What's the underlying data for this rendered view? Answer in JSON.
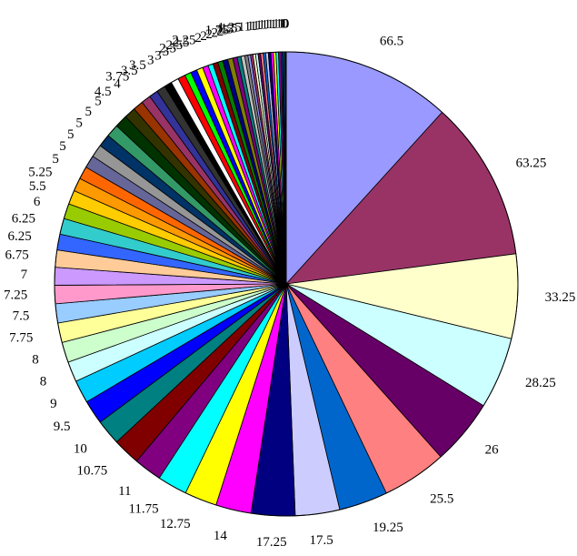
{
  "chart_data": {
    "type": "pie",
    "start": "top",
    "direction": "clockwise",
    "legend": "none",
    "slices": [
      {
        "value": 66.5,
        "label": "66.5",
        "color": "#9999ff"
      },
      {
        "value": 63.25,
        "label": "63.25",
        "color": "#993366"
      },
      {
        "value": 33.25,
        "label": "33.25",
        "color": "#ffffcc"
      },
      {
        "value": 28.25,
        "label": "28.25",
        "color": "#ccffff"
      },
      {
        "value": 26,
        "label": "26",
        "color": "#660066"
      },
      {
        "value": 25.5,
        "label": "25.5",
        "color": "#ff8080"
      },
      {
        "value": 19.25,
        "label": "19.25",
        "color": "#0066cc"
      },
      {
        "value": 17.5,
        "label": "17.5",
        "color": "#ccccff"
      },
      {
        "value": 17.25,
        "label": "17.25",
        "color": "#000080"
      },
      {
        "value": 14,
        "label": "14",
        "color": "#ff00ff"
      },
      {
        "value": 12.75,
        "label": "12.75",
        "color": "#ffff00"
      },
      {
        "value": 11.75,
        "label": "11.75",
        "color": "#00ffff"
      },
      {
        "value": 11,
        "label": "11",
        "color": "#800080"
      },
      {
        "value": 10.75,
        "label": "10.75",
        "color": "#800000"
      },
      {
        "value": 10,
        "label": "10",
        "color": "#008080"
      },
      {
        "value": 9.5,
        "label": "9.5",
        "color": "#0000ff"
      },
      {
        "value": 9,
        "label": "9",
        "color": "#00ccff"
      },
      {
        "value": 8,
        "label": "8",
        "color": "#ccffff"
      },
      {
        "value": 8,
        "label": "8",
        "color": "#ccffcc"
      },
      {
        "value": 7.75,
        "label": "7.75",
        "color": "#ffff99"
      },
      {
        "value": 7.5,
        "label": "7.5",
        "color": "#99ccff"
      },
      {
        "value": 7.25,
        "label": "7.25",
        "color": "#ff99cc"
      },
      {
        "value": 7,
        "label": "7",
        "color": "#cc99ff"
      },
      {
        "value": 6.75,
        "label": "6.75",
        "color": "#ffcc99"
      },
      {
        "value": 6.25,
        "label": "6.25",
        "color": "#3366ff"
      },
      {
        "value": 6.25,
        "label": "6.25",
        "color": "#33cccc"
      },
      {
        "value": 6,
        "label": "6",
        "color": "#99cc00"
      },
      {
        "value": 5.5,
        "label": "5.5",
        "color": "#ffcc00"
      },
      {
        "value": 5.25,
        "label": "5.25",
        "color": "#ff9900"
      },
      {
        "value": 5,
        "label": "5",
        "color": "#ff6600"
      },
      {
        "value": 5,
        "label": "5",
        "color": "#666699"
      },
      {
        "value": 5,
        "label": "5",
        "color": "#969696"
      },
      {
        "value": 5,
        "label": "5",
        "color": "#003366"
      },
      {
        "value": 5,
        "label": "5",
        "color": "#339966"
      },
      {
        "value": 5,
        "label": "5",
        "color": "#003300"
      },
      {
        "value": 4.5,
        "label": "4.5",
        "color": "#333300"
      },
      {
        "value": 4,
        "label": "4",
        "color": "#993300"
      },
      {
        "value": 3.75,
        "label": "3.75",
        "color": "#993366"
      },
      {
        "value": 3.5,
        "label": "3.5",
        "color": "#333399"
      },
      {
        "value": 3.5,
        "label": "3.5",
        "color": "#333333"
      },
      {
        "value": 3,
        "label": "3",
        "color": "#000000"
      },
      {
        "value": 3,
        "label": "3",
        "color": "#ffffff"
      },
      {
        "value": 3,
        "label": "3",
        "color": "#ff0000"
      },
      {
        "value": 2.5,
        "label": "2.5",
        "color": "#00ff00"
      },
      {
        "value": 2.5,
        "label": "2.5",
        "color": "#0000ff"
      },
      {
        "value": 2.5,
        "label": "2.5",
        "color": "#ffff00"
      },
      {
        "value": 2.25,
        "label": "2.25",
        "color": "#ff00ff"
      },
      {
        "value": 2,
        "label": "2",
        "color": "#00ffff"
      },
      {
        "value": 2,
        "label": "2",
        "color": "#800000"
      },
      {
        "value": 2,
        "label": "2",
        "color": "#008000"
      },
      {
        "value": 2,
        "label": "2",
        "color": "#000080"
      },
      {
        "value": 2,
        "label": "2",
        "color": "#808000"
      },
      {
        "value": 1.75,
        "label": "1.75",
        "color": "#800080"
      },
      {
        "value": 1.5,
        "label": "1.5",
        "color": "#008080"
      },
      {
        "value": 1.5,
        "label": "1.5",
        "color": "#c0c0c0"
      },
      {
        "value": 1.25,
        "label": "1.25",
        "color": "#808080"
      },
      {
        "value": 1,
        "label": "1",
        "color": "#9999ff"
      },
      {
        "value": 1,
        "label": "1",
        "color": "#993366"
      },
      {
        "value": 1,
        "label": "1",
        "color": "#ffffcc"
      },
      {
        "value": 1,
        "label": "1",
        "color": "#ccffff"
      },
      {
        "value": 1,
        "label": "1",
        "color": "#660066"
      },
      {
        "value": 1,
        "label": "1",
        "color": "#ff8080"
      },
      {
        "value": 1,
        "label": "1",
        "color": "#0066cc"
      },
      {
        "value": 1,
        "label": "1",
        "color": "#ccccff"
      },
      {
        "value": 1,
        "label": "1",
        "color": "#000080"
      },
      {
        "value": 1,
        "label": "1",
        "color": "#ff00ff"
      },
      {
        "value": 1,
        "label": "1",
        "color": "#ffff00"
      },
      {
        "value": 1,
        "label": "1",
        "color": "#00ffff"
      },
      {
        "value": 1,
        "label": "1",
        "color": "#800080"
      },
      {
        "value": 0.5,
        "label": "1",
        "color": "#008080"
      },
      {
        "value": 0.5,
        "label": "1",
        "color": "#0000ff"
      },
      {
        "value": 0.5,
        "label": "1",
        "color": "#00ccff"
      },
      {
        "value": 0.25,
        "label": "0",
        "color": "#ccffff"
      },
      {
        "value": 0.25,
        "label": "0",
        "color": "#ccffcc"
      }
    ]
  }
}
